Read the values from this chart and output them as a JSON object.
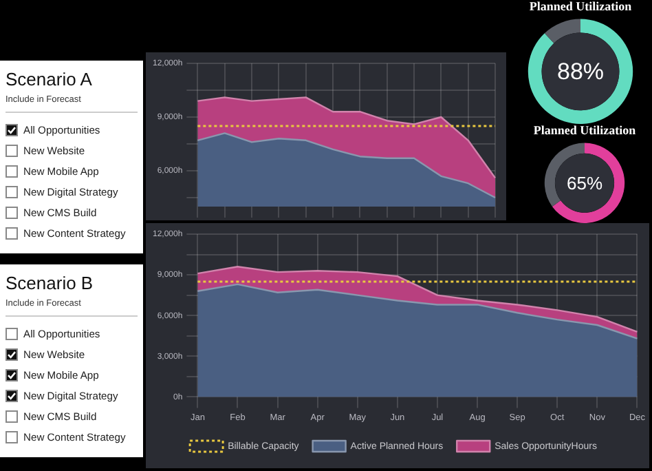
{
  "chart_data": [
    {
      "type": "other",
      "title": "Scenario A",
      "subtitle": "Include in Forecast",
      "categories": [
        "All Opportunities",
        "New Website",
        "New Mobile App",
        "New Digital Strategy",
        "New CMS Build",
        "New Content Strategy"
      ],
      "colors": [
        "#111111",
        "#ffffff",
        "#ffffff",
        "#ffffff",
        "#ffffff",
        "#ffffff"
      ]
    },
    {
      "type": "area",
      "grid": true,
      "legend": false,
      "tick_labels": "y",
      "categories": [
        null,
        null,
        null,
        null,
        null,
        null,
        null,
        null,
        null,
        null,
        null,
        null
      ],
      "ylim": [
        4000,
        12000
      ],
      "yticks": [
        {
          "value": 4500,
          "label": null
        },
        {
          "value": 6000,
          "label": "6,000h"
        },
        {
          "value": 7500,
          "label": null
        },
        {
          "value": 9000,
          "label": "9,000h"
        },
        {
          "value": 10500,
          "label": null
        },
        {
          "value": 12000,
          "label": "12,000h"
        }
      ],
      "series": [
        {
          "type": "area",
          "color": "#4a5f82",
          "values": [
            7700,
            8100,
            7600,
            7800,
            7700,
            7200,
            6800,
            6700,
            6700,
            5700,
            5300,
            4500
          ]
        },
        {
          "type": "area",
          "color": "#b8407f",
          "values": [
            9900,
            10100,
            9900,
            10000,
            10100,
            9300,
            9300,
            8800,
            8600,
            9000,
            7700,
            5600
          ]
        },
        {
          "type": "line",
          "line_style": "dotted",
          "color": "#e8c840",
          "values": [
            8500,
            8500,
            8500,
            8500,
            8500,
            8500,
            8500,
            8500,
            8500,
            8500,
            8500,
            8500
          ]
        }
      ]
    },
    {
      "type": "donut",
      "title": "Planned Utilization",
      "categories": [
        null,
        null
      ],
      "values": [
        88,
        12
      ],
      "colors": [
        "#62dcc0",
        "#5a5e66"
      ],
      "value_labels": [
        "88%",
        null
      ]
    },
    {
      "type": "donut",
      "title": "Planned Utilization",
      "categories": [
        null,
        null
      ],
      "values": [
        65,
        35
      ],
      "colors": [
        "#e23f9c",
        "#5a5e66"
      ],
      "value_labels": [
        "65%",
        null
      ]
    },
    {
      "type": "other",
      "title": "Scenario B",
      "subtitle": "Include in Forecast",
      "categories": [
        "All Opportunities",
        "New Website",
        "New Mobile App",
        "New Digital Strategy",
        "New CMS Build",
        "New Content Strategy"
      ],
      "colors": [
        "#ffffff",
        "#111111",
        "#111111",
        "#111111",
        "#ffffff",
        "#ffffff"
      ]
    },
    {
      "type": "area",
      "stacked": true,
      "grid": true,
      "legend": "bottom",
      "categories": [
        "Jan",
        "Feb",
        "Mar",
        "Apr",
        "May",
        "Jun",
        "Jul",
        "Aug",
        "Sep",
        "Oct",
        "Nov",
        "Dec"
      ],
      "ylim": [
        0,
        12000
      ],
      "yticks": [
        {
          "value": 0,
          "label": "0h"
        },
        {
          "value": 1500,
          "label": null
        },
        {
          "value": 3000,
          "label": "3,000h"
        },
        {
          "value": 4500,
          "label": null
        },
        {
          "value": 6000,
          "label": "6,000h"
        },
        {
          "value": 7500,
          "label": null
        },
        {
          "value": 9000,
          "label": "9,000h"
        },
        {
          "value": 10500,
          "label": null
        },
        {
          "value": 12000,
          "label": "12,000h"
        }
      ],
      "series": [
        {
          "name": "Active Planned Hours",
          "type": "area",
          "color": "#4a5f82",
          "values": [
            7800,
            8300,
            7700,
            7900,
            7500,
            7100,
            6800,
            6800,
            6200,
            5700,
            5300,
            4300
          ]
        },
        {
          "name": "Sales OpportunityHours",
          "type": "area",
          "color": "#b8407f",
          "values": [
            1300,
            1300,
            1500,
            1400,
            1700,
            1800,
            700,
            300,
            600,
            700,
            600,
            500
          ]
        },
        {
          "name": "Billable Capacity",
          "type": "line",
          "line_style": "dotted",
          "color": "#e8c840",
          "values": [
            8500,
            8500,
            8500,
            8500,
            8500,
            8500,
            8500,
            8500,
            8500,
            8500,
            8500,
            8500
          ]
        }
      ]
    }
  ]
}
